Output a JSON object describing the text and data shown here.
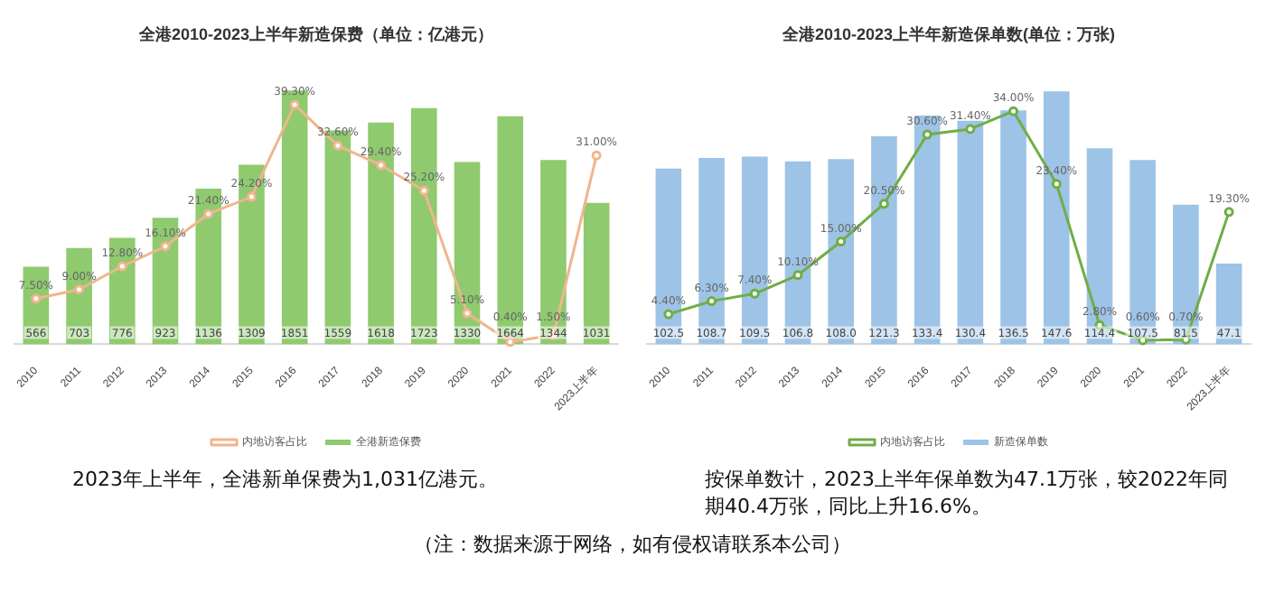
{
  "chart_data": [
    {
      "type": "bar",
      "title": "全港2010-2023上半年新造保费（单位：亿港元）",
      "categories": [
        "2010",
        "2011",
        "2012",
        "2013",
        "2014",
        "2015",
        "2016",
        "2017",
        "2018",
        "2019",
        "2020",
        "2021",
        "2022",
        "2023上半年"
      ],
      "series": [
        {
          "name": "全港新造保费",
          "color": "#8fca6f",
          "values": [
            566,
            703,
            776,
            923,
            1136,
            1309,
            1851,
            1559,
            1618,
            1723,
            1330,
            1664,
            1344,
            1031
          ],
          "value_labels": [
            "566",
            "703",
            "776",
            "923",
            "1136",
            "1309",
            "1851",
            "1559",
            "1618",
            "1723",
            "1330",
            "1664",
            "1344",
            "1031"
          ]
        },
        {
          "name": "内地访客占比",
          "type": "line",
          "axis": "y2",
          "color": "#f0b58e",
          "values": [
            7.5,
            9.0,
            12.8,
            16.1,
            21.4,
            24.2,
            39.3,
            32.6,
            29.4,
            25.2,
            5.1,
            0.4,
            1.5,
            31.0
          ],
          "value_labels": [
            "7.50%",
            "9.00%",
            "12.80%",
            "16.10%",
            "21.40%",
            "24.20%",
            "39.30%",
            "32.60%",
            "29.40%",
            "25.20%",
            "5.10%",
            "0.40%",
            "1.50%",
            "31.00%"
          ]
        }
      ],
      "tick_labels": "x",
      "legend": "bottom",
      "marker": "circle",
      "grid": false,
      "annotations": [
        "2023年上半年，全港新单保费为1,031亿港元。",
        "（注：数据来源于网络，如有侵权请联系本公司）"
      ]
    },
    {
      "type": "bar",
      "title": "全港2010-2023上半年新造保单数(单位：万张)",
      "categories": [
        "2010",
        "2011",
        "2012",
        "2013",
        "2014",
        "2015",
        "2016",
        "2017",
        "2018",
        "2019",
        "2020",
        "2021",
        "2022",
        "2023上半年"
      ],
      "series": [
        {
          "name": "新造保单数",
          "color": "#9dc3e6",
          "values": [
            102.5,
            108.7,
            109.5,
            106.8,
            108.0,
            121.3,
            133.4,
            130.4,
            136.5,
            147.6,
            114.4,
            107.5,
            81.5,
            47.1
          ],
          "value_labels": [
            "102.5",
            "108.7",
            "109.5",
            "106.8",
            "108.0",
            "121.3",
            "133.4",
            "130.4",
            "136.5",
            "147.6",
            "114.4",
            "107.5",
            "81.5",
            "47.1"
          ]
        },
        {
          "name": "内地访客占比",
          "type": "line",
          "axis": "y2",
          "color": "#70ad47",
          "values": [
            4.4,
            6.3,
            7.4,
            10.1,
            15.0,
            20.5,
            30.6,
            31.4,
            34.0,
            23.4,
            2.8,
            0.6,
            0.7,
            19.3
          ],
          "value_labels": [
            "4.40%",
            "6.30%",
            "7.40%",
            "10.10%",
            "15.00%",
            "20.50%",
            "30.60%",
            "31.40%",
            "34.00%",
            "23.40%",
            "2.80%",
            "0.60%",
            "0.70%",
            "19.30%"
          ]
        }
      ],
      "tick_labels": "x",
      "legend": "bottom",
      "marker": "circle",
      "grid": false,
      "annotations": [
        "按保单数计，2023上半年保单数为47.1万张，较2022年同期40.4万张，同比上升16.6%。"
      ]
    }
  ]
}
